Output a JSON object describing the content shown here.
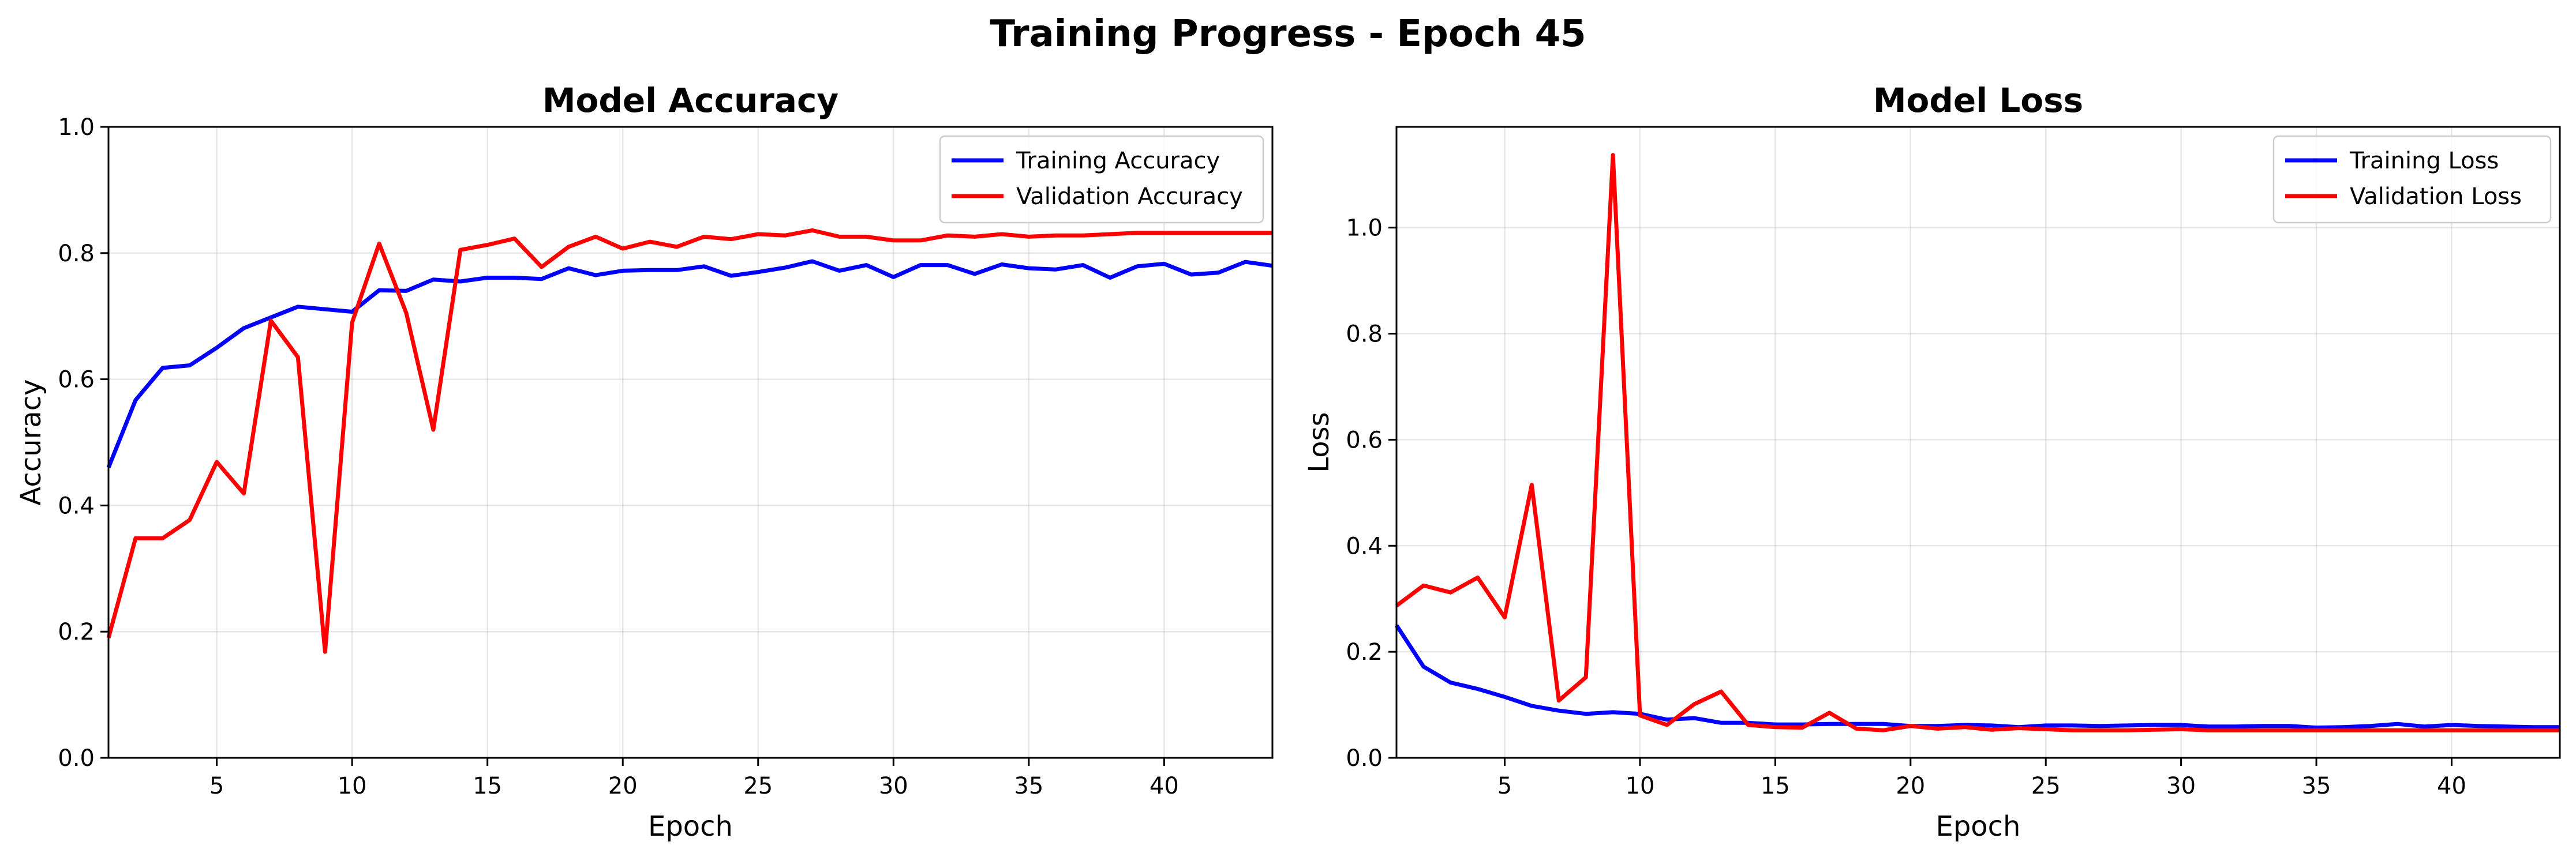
{
  "title": "Training Progress - Epoch 45",
  "chart_data": [
    {
      "type": "line",
      "title": "Model Accuracy",
      "xlabel": "Epoch",
      "ylabel": "Accuracy",
      "xlim": [
        1,
        44
      ],
      "ylim": [
        0.0,
        1.0
      ],
      "xticks": [
        5,
        10,
        15,
        20,
        25,
        30,
        35,
        40
      ],
      "yticks": [
        0.0,
        0.2,
        0.4,
        0.6,
        0.8,
        1.0
      ],
      "grid": true,
      "legend_position": "top-right",
      "x": [
        1,
        2,
        3,
        4,
        5,
        6,
        7,
        8,
        9,
        10,
        11,
        12,
        13,
        14,
        15,
        16,
        17,
        18,
        19,
        20,
        21,
        22,
        23,
        24,
        25,
        26,
        27,
        28,
        29,
        30,
        31,
        32,
        33,
        34,
        35,
        36,
        37,
        38,
        39,
        40,
        41,
        42,
        43,
        44
      ],
      "series": [
        {
          "name": "Training Accuracy",
          "color": "#0000ff",
          "values": [
            0.46,
            0.567,
            0.618,
            0.622,
            0.65,
            0.681,
            0.698,
            0.715,
            0.711,
            0.707,
            0.741,
            0.74,
            0.758,
            0.755,
            0.761,
            0.761,
            0.759,
            0.776,
            0.765,
            0.772,
            0.773,
            0.773,
            0.779,
            0.764,
            0.77,
            0.777,
            0.787,
            0.772,
            0.781,
            0.762,
            0.781,
            0.781,
            0.767,
            0.782,
            0.776,
            0.774,
            0.781,
            0.761,
            0.779,
            0.783,
            0.766,
            0.769,
            0.786,
            0.78
          ]
        },
        {
          "name": "Validation Accuracy",
          "color": "#ff0000",
          "values": [
            0.19,
            0.348,
            0.348,
            0.377,
            0.469,
            0.419,
            0.693,
            0.635,
            0.168,
            0.69,
            0.815,
            0.705,
            0.52,
            0.805,
            0.813,
            0.823,
            0.778,
            0.81,
            0.826,
            0.807,
            0.818,
            0.81,
            0.826,
            0.822,
            0.83,
            0.828,
            0.836,
            0.826,
            0.826,
            0.82,
            0.82,
            0.828,
            0.826,
            0.83,
            0.826,
            0.828,
            0.828,
            0.83,
            0.832,
            0.832,
            0.832,
            0.832,
            0.832,
            0.832
          ]
        }
      ]
    },
    {
      "type": "line",
      "title": "Model Loss",
      "xlabel": "Epoch",
      "ylabel": "Loss",
      "xlim": [
        1,
        44
      ],
      "ylim": [
        0.0,
        1.19
      ],
      "xticks": [
        5,
        10,
        15,
        20,
        25,
        30,
        35,
        40
      ],
      "yticks": [
        0.0,
        0.2,
        0.4,
        0.6,
        0.8,
        1.0
      ],
      "grid": true,
      "legend_position": "top-right",
      "x": [
        1,
        2,
        3,
        4,
        5,
        6,
        7,
        8,
        9,
        10,
        11,
        12,
        13,
        14,
        15,
        16,
        17,
        18,
        19,
        20,
        21,
        22,
        23,
        24,
        25,
        26,
        27,
        28,
        29,
        30,
        31,
        32,
        33,
        34,
        35,
        36,
        37,
        38,
        39,
        40,
        41,
        42,
        43,
        44
      ],
      "series": [
        {
          "name": "Training Loss",
          "color": "#0000ff",
          "values": [
            0.25,
            0.172,
            0.142,
            0.13,
            0.115,
            0.098,
            0.089,
            0.083,
            0.086,
            0.083,
            0.072,
            0.075,
            0.066,
            0.066,
            0.063,
            0.063,
            0.064,
            0.064,
            0.064,
            0.06,
            0.06,
            0.062,
            0.061,
            0.058,
            0.061,
            0.061,
            0.06,
            0.061,
            0.062,
            0.062,
            0.059,
            0.059,
            0.06,
            0.06,
            0.057,
            0.058,
            0.06,
            0.064,
            0.059,
            0.062,
            0.06,
            0.059,
            0.058,
            0.058
          ]
        },
        {
          "name": "Validation Loss",
          "color": "#ff0000",
          "values": [
            0.287,
            0.325,
            0.312,
            0.34,
            0.265,
            0.515,
            0.108,
            0.152,
            1.137,
            0.08,
            0.062,
            0.101,
            0.125,
            0.062,
            0.058,
            0.057,
            0.085,
            0.055,
            0.052,
            0.06,
            0.055,
            0.058,
            0.053,
            0.056,
            0.054,
            0.052,
            0.052,
            0.052,
            0.053,
            0.054,
            0.052,
            0.052,
            0.052,
            0.052,
            0.052,
            0.052,
            0.052,
            0.052,
            0.052,
            0.052,
            0.052,
            0.052,
            0.052,
            0.052
          ]
        }
      ]
    }
  ]
}
